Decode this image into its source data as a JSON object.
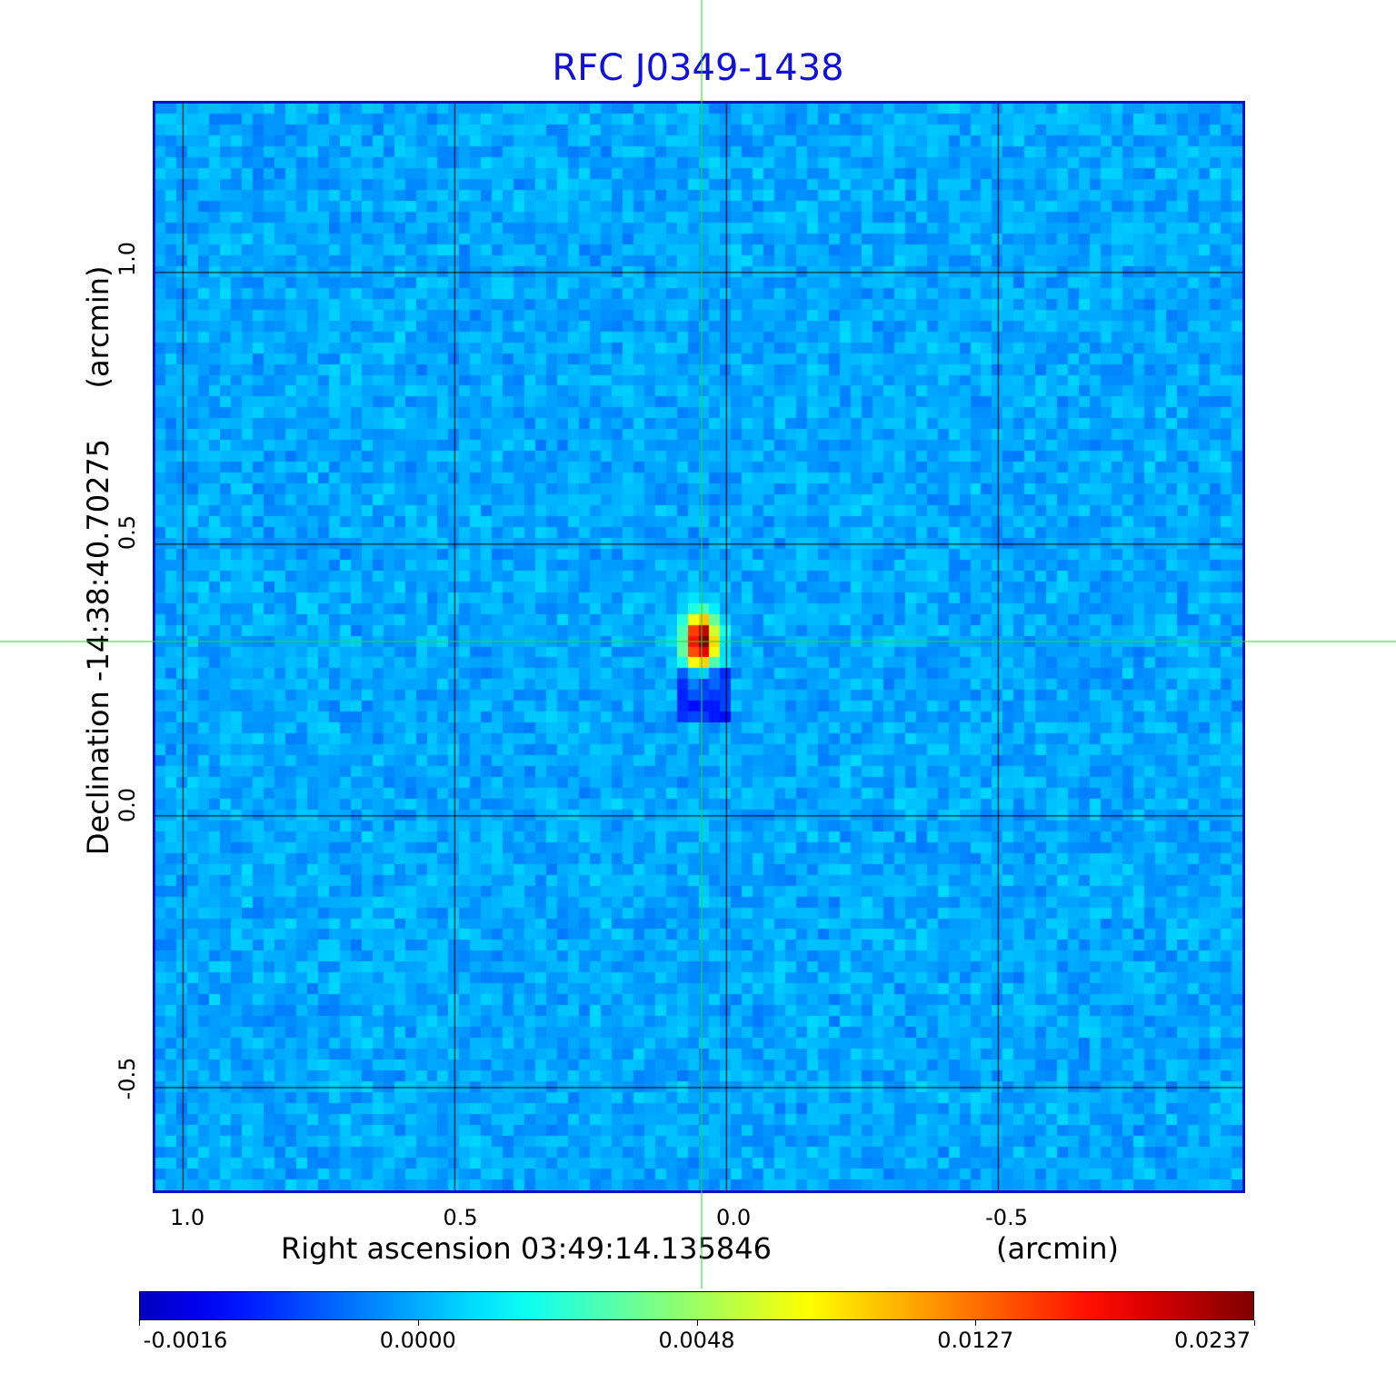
{
  "chart_data": {
    "type": "heatmap",
    "title": "RFC J0349-1438",
    "xlabel": "Right ascension  03:49:14.135846",
    "xunit": "(arcmin)",
    "ylabel": "Declination  -14:38:40.70275",
    "yunit": "(arcmin)",
    "xlim": [
      1.05,
      -0.95
    ],
    "ylim": [
      -0.69,
      1.31
    ],
    "x_ticks": [
      {
        "value": 1.0,
        "label": "1.0"
      },
      {
        "value": 0.5,
        "label": "0.5"
      },
      {
        "value": 0.0,
        "label": "0.0"
      },
      {
        "value": -0.5,
        "label": "-0.5"
      }
    ],
    "y_ticks": [
      {
        "value": 1.0,
        "label": "1.0"
      },
      {
        "value": 0.5,
        "label": "0.5"
      },
      {
        "value": 0.0,
        "label": "0.0"
      },
      {
        "value": -0.5,
        "label": "-0.5"
      }
    ],
    "grid": true,
    "crosshair": {
      "x": 0.045,
      "y": 0.32
    },
    "peak": {
      "x": 0.045,
      "y": 0.32,
      "value": 0.0237
    },
    "colormap": "jet",
    "colorbar": {
      "min": -0.0016,
      "max": 0.0237,
      "ticks": [
        {
          "label": "-0.0016",
          "frac": 0.0
        },
        {
          "label": "0.0000",
          "frac": 0.25
        },
        {
          "label": "0.0048",
          "frac": 0.5
        },
        {
          "label": "0.0127",
          "frac": 0.75
        },
        {
          "label": "0.0237",
          "frac": 1.0
        }
      ]
    },
    "colors": {
      "title": "#1010d8",
      "frame": "#0a14c8",
      "grid": "#000000",
      "crosshair": "#22dd22"
    }
  }
}
